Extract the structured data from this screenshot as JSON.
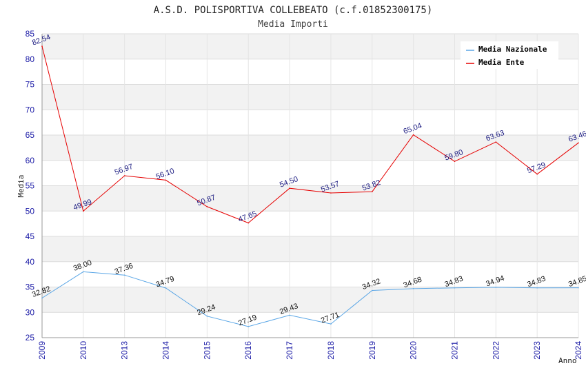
{
  "header": {
    "title": "A.S.D. POLISPORTIVA COLLEBEATO (c.f.01852300175)",
    "subtitle": "Media Importi"
  },
  "chart_data": {
    "type": "line",
    "title": "A.S.D. POLISPORTIVA COLLEBEATO (c.f.01852300175)",
    "subtitle": "Media Importi",
    "xlabel": "Anno",
    "ylabel": "Media",
    "categories": [
      "2009",
      "2010",
      "2013",
      "2014",
      "2015",
      "2016",
      "2017",
      "2018",
      "2019",
      "2020",
      "2021",
      "2022",
      "2023",
      "2024"
    ],
    "ylim": [
      25,
      85
    ],
    "yticks": [
      25,
      30,
      35,
      40,
      45,
      50,
      55,
      60,
      65,
      70,
      75,
      80,
      85
    ],
    "grid": true,
    "legend_position": "top-right",
    "series": [
      {
        "name": "Media Nazionale",
        "color": "#5aa6e6",
        "values": [
          32.82,
          38.0,
          37.36,
          34.79,
          29.24,
          27.19,
          29.43,
          27.71,
          34.32,
          34.68,
          34.83,
          34.94,
          34.83,
          34.85
        ],
        "labels": [
          "32.82",
          "38.00",
          "37.36",
          "34.79",
          "29.24",
          "27.19",
          "29.43",
          "27.71",
          "34.32",
          "34.68",
          "34.83",
          "34.94",
          "34.83",
          "34.85"
        ]
      },
      {
        "name": "Media Ente",
        "color": "#e60000",
        "values": [
          82.54,
          49.99,
          56.97,
          56.1,
          50.87,
          47.65,
          54.5,
          53.57,
          53.82,
          65.04,
          59.8,
          63.63,
          57.29,
          63.46
        ],
        "labels": [
          "82.54",
          "49.99",
          "56.97",
          "56.10",
          "50.87",
          "47.65",
          "54.50",
          "53.57",
          "53.82",
          "65.04",
          "59.80",
          "63.63",
          "57.29",
          "63.46"
        ]
      }
    ]
  }
}
